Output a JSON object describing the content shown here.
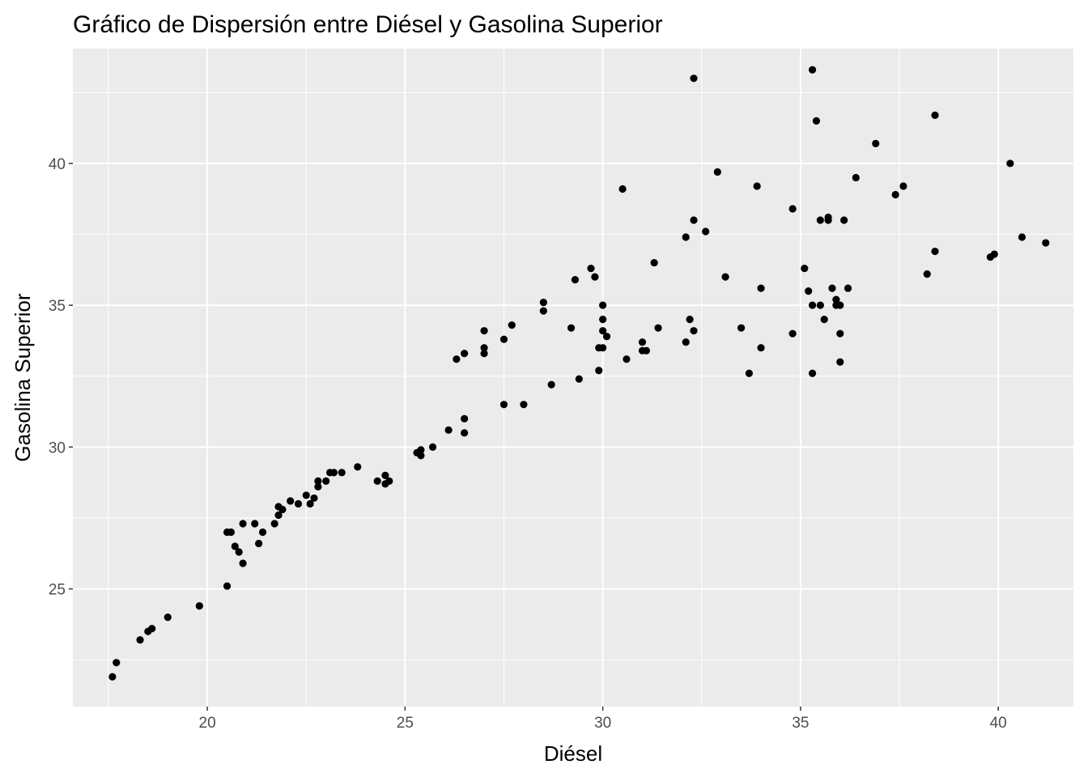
{
  "chart_data": {
    "type": "scatter",
    "title": "Gráfico de Dispersión entre Diésel y Gasolina Superior",
    "xlabel": "Diésel",
    "ylabel": "Gasolina Superior",
    "xlim": [
      16.6,
      41.9
    ],
    "ylim": [
      20.85,
      44.05
    ],
    "x_ticks": [
      20,
      25,
      30,
      35,
      40
    ],
    "y_ticks": [
      25,
      30,
      35,
      40
    ],
    "x_tick_labels": [
      "20",
      "25",
      "30",
      "35",
      "40"
    ],
    "y_tick_labels": [
      "25",
      "30",
      "35",
      "40"
    ],
    "grid": true,
    "colors": {
      "panel_background": "#ebebeb",
      "grid_major": "#ffffff",
      "point": "#000000",
      "tick_text": "#4d4d4d",
      "tick_mark": "#333333"
    },
    "points": [
      [
        17.6,
        21.9
      ],
      [
        17.7,
        22.4
      ],
      [
        18.3,
        23.2
      ],
      [
        18.5,
        23.5
      ],
      [
        18.6,
        23.6
      ],
      [
        19.0,
        24.0
      ],
      [
        19.8,
        24.4
      ],
      [
        20.5,
        27.0
      ],
      [
        20.6,
        27.0
      ],
      [
        20.5,
        25.1
      ],
      [
        20.7,
        26.5
      ],
      [
        20.8,
        26.3
      ],
      [
        20.9,
        27.3
      ],
      [
        20.9,
        25.9
      ],
      [
        21.2,
        27.3
      ],
      [
        21.3,
        26.6
      ],
      [
        21.4,
        27.0
      ],
      [
        21.7,
        27.3
      ],
      [
        21.8,
        27.6
      ],
      [
        21.8,
        27.9
      ],
      [
        21.9,
        27.8
      ],
      [
        22.1,
        28.1
      ],
      [
        22.3,
        28.0
      ],
      [
        22.5,
        28.3
      ],
      [
        22.6,
        28.0
      ],
      [
        22.7,
        28.2
      ],
      [
        22.8,
        28.6
      ],
      [
        22.8,
        28.8
      ],
      [
        23.0,
        28.8
      ],
      [
        23.1,
        29.1
      ],
      [
        23.2,
        29.1
      ],
      [
        23.4,
        29.1
      ],
      [
        23.8,
        29.3
      ],
      [
        24.3,
        28.8
      ],
      [
        24.5,
        29.0
      ],
      [
        24.5,
        28.7
      ],
      [
        24.6,
        28.8
      ],
      [
        25.3,
        29.8
      ],
      [
        25.4,
        29.9
      ],
      [
        25.4,
        29.7
      ],
      [
        25.7,
        30.0
      ],
      [
        26.1,
        30.6
      ],
      [
        26.3,
        33.1
      ],
      [
        26.5,
        33.3
      ],
      [
        26.5,
        31.0
      ],
      [
        26.5,
        30.5
      ],
      [
        27.0,
        33.5
      ],
      [
        27.0,
        33.3
      ],
      [
        27.0,
        34.1
      ],
      [
        27.5,
        33.8
      ],
      [
        27.5,
        31.5
      ],
      [
        27.7,
        34.3
      ],
      [
        28.0,
        31.5
      ],
      [
        28.5,
        35.1
      ],
      [
        28.5,
        34.8
      ],
      [
        28.7,
        32.2
      ],
      [
        29.2,
        34.2
      ],
      [
        29.3,
        35.9
      ],
      [
        29.4,
        32.4
      ],
      [
        29.7,
        36.3
      ],
      [
        29.8,
        36.0
      ],
      [
        29.9,
        33.5
      ],
      [
        29.9,
        32.7
      ],
      [
        30.0,
        35.0
      ],
      [
        30.0,
        34.5
      ],
      [
        30.0,
        34.1
      ],
      [
        30.1,
        33.9
      ],
      [
        30.0,
        33.5
      ],
      [
        30.5,
        39.1
      ],
      [
        30.6,
        33.1
      ],
      [
        31.0,
        33.7
      ],
      [
        31.0,
        33.4
      ],
      [
        31.1,
        33.4
      ],
      [
        31.3,
        36.5
      ],
      [
        31.4,
        34.2
      ],
      [
        32.1,
        37.4
      ],
      [
        32.1,
        33.7
      ],
      [
        32.2,
        34.5
      ],
      [
        32.3,
        34.1
      ],
      [
        32.3,
        38.0
      ],
      [
        32.3,
        43.0
      ],
      [
        32.6,
        37.6
      ],
      [
        32.9,
        39.7
      ],
      [
        33.1,
        36.0
      ],
      [
        33.5,
        34.2
      ],
      [
        33.7,
        32.6
      ],
      [
        33.9,
        39.2
      ],
      [
        34.0,
        35.6
      ],
      [
        34.0,
        33.5
      ],
      [
        34.8,
        38.4
      ],
      [
        34.8,
        34.0
      ],
      [
        35.1,
        36.3
      ],
      [
        35.2,
        35.5
      ],
      [
        35.3,
        35.0
      ],
      [
        35.3,
        32.6
      ],
      [
        35.3,
        43.3
      ],
      [
        35.4,
        41.5
      ],
      [
        35.5,
        38.0
      ],
      [
        35.5,
        35.0
      ],
      [
        35.6,
        34.5
      ],
      [
        35.7,
        38.1
      ],
      [
        35.7,
        38.0
      ],
      [
        35.8,
        35.6
      ],
      [
        35.9,
        35.2
      ],
      [
        35.9,
        35.0
      ],
      [
        36.0,
        34.0
      ],
      [
        36.0,
        33.0
      ],
      [
        36.0,
        35.0
      ],
      [
        36.1,
        38.0
      ],
      [
        36.2,
        35.6
      ],
      [
        36.4,
        39.5
      ],
      [
        36.9,
        40.7
      ],
      [
        37.4,
        38.9
      ],
      [
        37.6,
        39.2
      ],
      [
        38.2,
        36.1
      ],
      [
        38.4,
        41.7
      ],
      [
        38.4,
        36.9
      ],
      [
        39.8,
        36.7
      ],
      [
        39.9,
        36.8
      ],
      [
        40.3,
        40.0
      ],
      [
        40.6,
        37.4
      ],
      [
        41.2,
        37.2
      ]
    ]
  }
}
